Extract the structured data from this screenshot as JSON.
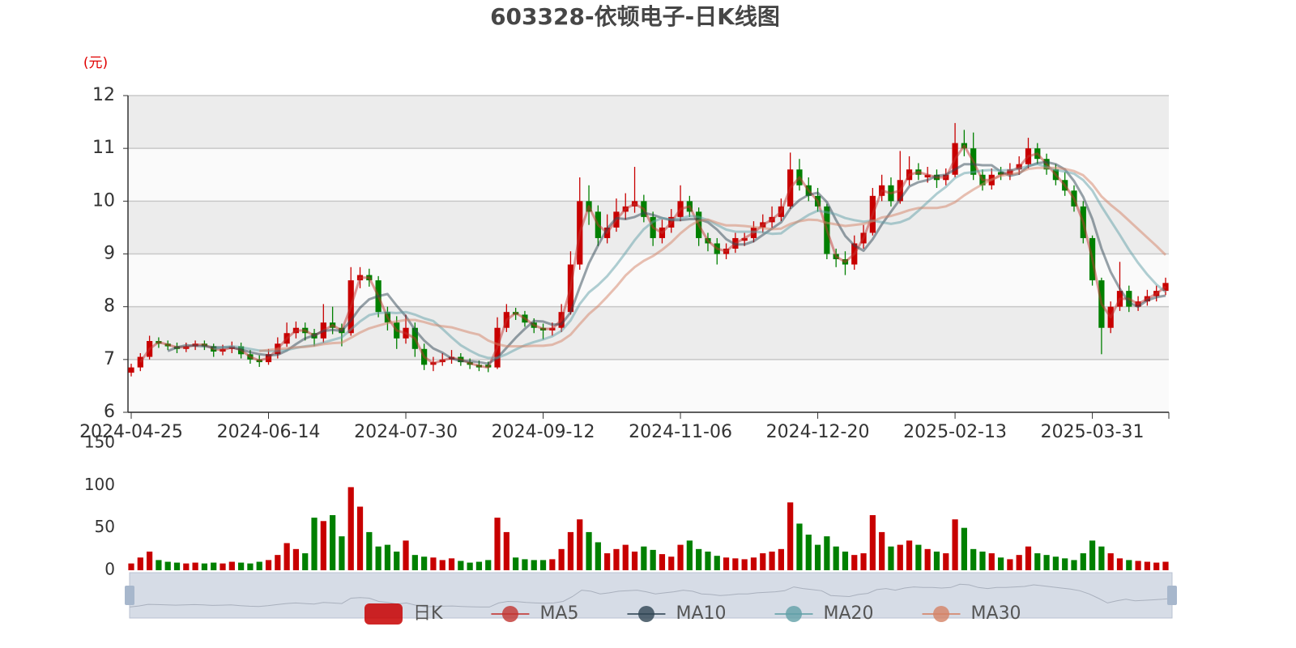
{
  "chart_data": {
    "type": "candlestick",
    "title": "603328-依顿电子-日K线图",
    "unit_label": "(元)",
    "categories": [
      "2024-04-25",
      null,
      null,
      null,
      null,
      null,
      null,
      null,
      null,
      null,
      null,
      null,
      null,
      null,
      null,
      "2024-06-14",
      null,
      null,
      null,
      null,
      null,
      null,
      null,
      null,
      null,
      null,
      null,
      null,
      null,
      null,
      "2024-07-30",
      null,
      null,
      null,
      null,
      null,
      null,
      null,
      null,
      null,
      null,
      null,
      null,
      null,
      null,
      "2024-09-12",
      null,
      null,
      null,
      null,
      null,
      null,
      null,
      null,
      null,
      null,
      null,
      null,
      null,
      null,
      "2024-11-06",
      null,
      null,
      null,
      null,
      null,
      null,
      null,
      null,
      null,
      null,
      null,
      null,
      null,
      null,
      "2024-12-20",
      null,
      null,
      null,
      null,
      null,
      null,
      null,
      null,
      null,
      null,
      null,
      null,
      null,
      null,
      "2025-02-13",
      null,
      null,
      null,
      null,
      null,
      null,
      null,
      null,
      null,
      null,
      null,
      null,
      null,
      null,
      "2025-03-31",
      null,
      null,
      null,
      null,
      null,
      null,
      null,
      null
    ],
    "ylim": [
      6,
      12
    ],
    "yticks": [
      6,
      7,
      8,
      9,
      10,
      11,
      12
    ],
    "grid": true,
    "series": [
      {
        "name": "日K",
        "type": "candlestick",
        "up_color": "#c80000",
        "down_color": "#008000",
        "open": [
          6.75,
          6.85,
          7.05,
          7.35,
          7.3,
          7.25,
          7.2,
          7.25,
          7.3,
          7.25,
          7.15,
          7.2,
          7.25,
          7.1,
          7.0,
          6.95,
          7.1,
          7.3,
          7.5,
          7.6,
          7.5,
          7.4,
          7.7,
          7.6,
          7.5,
          8.5,
          8.6,
          8.5,
          7.9,
          7.7,
          7.4,
          7.6,
          7.2,
          6.9,
          6.95,
          7.0,
          7.05,
          6.95,
          6.9,
          6.9,
          6.85,
          7.6,
          7.9,
          7.85,
          7.7,
          7.6,
          7.55,
          7.6,
          7.9,
          8.8,
          10.0,
          9.8,
          9.3,
          9.5,
          9.8,
          9.9,
          10.0,
          9.7,
          9.3,
          9.5,
          9.7,
          10.0,
          9.8,
          9.3,
          9.2,
          9.0,
          9.1,
          9.25,
          9.3,
          9.5,
          9.6,
          9.7,
          9.9,
          10.6,
          10.3,
          10.1,
          9.9,
          9.0,
          8.9,
          8.8,
          9.2,
          9.4,
          10.1,
          10.3,
          10.0,
          10.4,
          10.6,
          10.45,
          10.5,
          10.4,
          10.5,
          11.1,
          11.0,
          10.5,
          10.3,
          10.55,
          10.5,
          10.6,
          10.7,
          11.0,
          10.8,
          10.6,
          10.4,
          10.2,
          9.9,
          9.3,
          8.5,
          7.6,
          8.0,
          8.3,
          8.0,
          8.1,
          8.2,
          8.3
        ],
        "close": [
          6.85,
          7.05,
          7.35,
          7.3,
          7.25,
          7.2,
          7.25,
          7.3,
          7.25,
          7.15,
          7.2,
          7.25,
          7.1,
          7.0,
          6.95,
          7.1,
          7.3,
          7.5,
          7.6,
          7.5,
          7.4,
          7.7,
          7.6,
          7.5,
          8.5,
          8.6,
          8.5,
          7.9,
          7.7,
          7.4,
          7.6,
          7.2,
          6.9,
          6.95,
          7.0,
          7.05,
          6.95,
          6.9,
          6.85,
          6.85,
          7.6,
          7.9,
          7.85,
          7.7,
          7.6,
          7.55,
          7.6,
          7.9,
          8.8,
          10.0,
          9.8,
          9.3,
          9.5,
          9.8,
          9.9,
          10.0,
          9.7,
          9.3,
          9.5,
          9.7,
          10.0,
          9.8,
          9.3,
          9.2,
          9.0,
          9.1,
          9.3,
          9.3,
          9.5,
          9.6,
          9.7,
          9.9,
          10.6,
          10.3,
          10.1,
          9.9,
          9.0,
          8.9,
          8.8,
          9.2,
          9.4,
          10.1,
          10.3,
          10.0,
          10.4,
          10.6,
          10.5,
          10.5,
          10.4,
          10.5,
          11.1,
          11.0,
          10.5,
          10.3,
          10.5,
          10.5,
          10.6,
          10.7,
          11.0,
          10.8,
          10.6,
          10.4,
          10.2,
          9.9,
          9.3,
          8.5,
          7.6,
          8.0,
          8.3,
          8.0,
          8.1,
          8.2,
          8.3,
          8.45
        ],
        "low": [
          6.68,
          6.78,
          7.0,
          7.22,
          7.18,
          7.12,
          7.14,
          7.18,
          7.18,
          7.05,
          7.08,
          7.12,
          7.02,
          6.92,
          6.86,
          6.9,
          7.02,
          7.24,
          7.4,
          7.36,
          7.25,
          7.32,
          7.48,
          7.25,
          7.45,
          8.35,
          8.38,
          7.8,
          7.55,
          7.2,
          7.3,
          7.05,
          6.8,
          6.78,
          6.88,
          6.92,
          6.88,
          6.82,
          6.78,
          6.76,
          6.82,
          7.52,
          7.75,
          7.62,
          7.5,
          7.38,
          7.45,
          7.52,
          7.85,
          8.7,
          9.55,
          9.15,
          9.2,
          9.42,
          9.65,
          9.78,
          9.6,
          9.15,
          9.2,
          9.4,
          9.62,
          9.7,
          9.15,
          9.05,
          8.8,
          8.9,
          9.02,
          9.15,
          9.22,
          9.4,
          9.5,
          9.62,
          9.85,
          10.2,
          10.0,
          9.8,
          8.9,
          8.75,
          8.6,
          8.7,
          9.1,
          9.35,
          10.0,
          9.9,
          9.95,
          10.3,
          10.4,
          10.35,
          10.25,
          10.3,
          10.45,
          10.85,
          10.4,
          10.2,
          10.22,
          10.4,
          10.4,
          10.5,
          10.62,
          10.7,
          10.5,
          10.3,
          10.1,
          9.8,
          9.2,
          8.4,
          7.1,
          7.5,
          7.92,
          7.9,
          7.92,
          8.02,
          8.1,
          8.22
        ],
        "high": [
          6.92,
          7.12,
          7.45,
          7.42,
          7.36,
          7.32,
          7.32,
          7.36,
          7.36,
          7.3,
          7.28,
          7.34,
          7.32,
          7.18,
          7.08,
          7.2,
          7.42,
          7.7,
          7.72,
          7.7,
          7.58,
          8.05,
          8.0,
          7.68,
          8.75,
          8.75,
          8.72,
          8.58,
          8.0,
          7.82,
          7.85,
          7.7,
          7.3,
          7.05,
          7.12,
          7.18,
          7.12,
          7.02,
          6.98,
          6.96,
          7.8,
          8.05,
          7.98,
          7.92,
          7.78,
          7.68,
          7.7,
          8.05,
          9.05,
          10.45,
          10.3,
          9.92,
          9.75,
          10.05,
          10.15,
          10.65,
          10.12,
          9.8,
          9.65,
          9.85,
          10.3,
          10.1,
          9.88,
          9.4,
          9.3,
          9.2,
          9.4,
          9.4,
          9.62,
          9.75,
          9.9,
          10.05,
          10.92,
          10.8,
          10.45,
          10.25,
          9.95,
          9.1,
          9.05,
          9.35,
          9.55,
          10.25,
          10.5,
          10.45,
          10.95,
          10.85,
          10.72,
          10.65,
          10.6,
          10.62,
          11.48,
          11.35,
          11.3,
          10.6,
          10.62,
          10.65,
          10.72,
          10.85,
          11.2,
          11.1,
          10.9,
          10.7,
          10.55,
          10.3,
          10.0,
          9.35,
          8.55,
          8.1,
          8.85,
          8.4,
          8.2,
          8.32,
          8.4,
          8.55
        ]
      },
      {
        "name": "MA5",
        "type": "line",
        "color": "#c23531",
        "values": [
          null,
          6.95,
          7.2,
          7.33,
          7.28,
          7.23,
          7.23,
          7.28,
          7.28,
          7.2,
          7.18,
          7.23,
          7.18,
          7.05,
          6.98,
          7.03,
          7.2,
          7.4,
          7.55,
          7.55,
          7.45,
          7.55,
          7.65,
          7.55,
          8.0,
          8.55,
          8.55,
          8.2,
          7.8,
          7.55,
          7.5,
          7.4,
          7.05,
          6.93,
          6.98,
          7.03,
          7.0,
          6.93,
          6.88,
          6.85,
          7.23,
          7.75,
          7.88,
          7.78,
          7.65,
          7.58,
          7.58,
          7.75,
          8.35,
          9.4,
          9.9,
          9.55,
          9.4,
          9.65,
          9.85,
          9.95,
          9.85,
          9.5,
          9.4,
          9.6,
          9.85,
          9.9,
          9.55,
          9.25,
          9.1,
          9.05,
          9.2,
          9.3,
          9.4,
          9.55,
          9.65,
          9.8,
          10.25,
          10.45,
          10.2,
          10.0,
          9.45,
          8.95,
          8.85,
          9.0,
          9.3,
          9.75,
          10.2,
          10.15,
          10.2,
          10.5,
          10.55,
          10.5,
          10.45,
          10.45,
          10.8,
          11.05,
          10.75,
          10.4,
          10.4,
          10.5,
          10.55,
          10.65,
          10.85,
          10.9,
          10.7,
          10.5,
          10.3,
          10.05,
          9.6,
          8.9,
          8.05,
          7.8,
          8.15,
          8.15,
          8.05,
          8.15,
          8.25,
          8.38
        ]
      },
      {
        "name": "MA10",
        "type": "line",
        "color": "#2f4554",
        "values": [
          null,
          null,
          null,
          null,
          7.16,
          7.23,
          7.27,
          7.26,
          7.25,
          7.23,
          7.23,
          7.23,
          7.19,
          7.14,
          7.1,
          7.08,
          7.09,
          7.17,
          7.29,
          7.4,
          7.46,
          7.54,
          7.56,
          7.54,
          7.74,
          7.98,
          8.14,
          8.2,
          8.24,
          8.02,
          7.82,
          7.56,
          7.36,
          7.21,
          7.13,
          7.02,
          6.97,
          6.97,
          6.95,
          6.92,
          7.03,
          7.22,
          7.41,
          7.58,
          7.73,
          7.72,
          7.66,
          7.67,
          7.89,
          8.37,
          8.82,
          9.16,
          9.48,
          9.68,
          9.66,
          9.7,
          9.78,
          9.74,
          9.68,
          9.64,
          9.64,
          9.66,
          9.66,
          9.6,
          9.46,
          9.28,
          9.18,
          9.18,
          9.24,
          9.36,
          9.48,
          9.6,
          9.86,
          10.02,
          10.12,
          10.16,
          9.98,
          9.64,
          9.34,
          9.16,
          9.06,
          9.28,
          9.56,
          9.8,
          10.04,
          10.28,
          10.36,
          10.4,
          10.48,
          10.5,
          10.6,
          10.7,
          10.7,
          10.68,
          10.68,
          10.56,
          10.48,
          10.52,
          10.66,
          10.72,
          10.74,
          10.7,
          10.6,
          10.38,
          10.08,
          9.66,
          9.1,
          8.66,
          8.34,
          8.08,
          8.0,
          8.12,
          8.18,
          8.21
        ]
      },
      {
        "name": "MA20",
        "type": "line",
        "color": "#61a0a8",
        "values": [
          null,
          null,
          null,
          null,
          null,
          null,
          null,
          null,
          null,
          7.2,
          7.23,
          7.25,
          7.23,
          7.2,
          7.17,
          7.16,
          7.16,
          7.18,
          7.22,
          7.25,
          7.27,
          7.32,
          7.37,
          7.42,
          7.57,
          7.72,
          7.84,
          7.88,
          7.89,
          7.88,
          7.9,
          7.85,
          7.78,
          7.73,
          7.58,
          7.42,
          7.27,
          7.17,
          7.08,
          7.03,
          7.03,
          7.1,
          7.19,
          7.27,
          7.33,
          7.38,
          7.44,
          7.54,
          7.74,
          8.05,
          8.27,
          8.41,
          8.58,
          8.79,
          9.02,
          9.26,
          9.47,
          9.61,
          9.68,
          9.65,
          9.67,
          9.72,
          9.7,
          9.64,
          9.55,
          9.46,
          9.42,
          9.42,
          9.42,
          9.41,
          9.38,
          9.39,
          9.52,
          9.63,
          9.74,
          9.82,
          9.79,
          9.75,
          9.68,
          9.64,
          9.61,
          9.63,
          9.6,
          9.57,
          9.6,
          9.67,
          9.82,
          9.98,
          10.14,
          10.27,
          10.44,
          10.53,
          10.55,
          10.58,
          10.59,
          10.58,
          10.59,
          10.61,
          10.67,
          10.7,
          10.65,
          10.59,
          10.56,
          10.52,
          10.4,
          10.2,
          9.9,
          9.63,
          9.36,
          9.08,
          8.83,
          8.61,
          8.42,
          8.28
        ]
      },
      {
        "name": "MA30",
        "type": "line",
        "color": "#d48265",
        "values": [
          null,
          null,
          null,
          null,
          null,
          null,
          null,
          null,
          null,
          null,
          null,
          null,
          null,
          null,
          7.16,
          7.18,
          7.2,
          7.21,
          7.23,
          7.24,
          7.26,
          7.29,
          7.31,
          7.32,
          7.41,
          7.51,
          7.59,
          7.64,
          7.69,
          7.72,
          7.75,
          7.75,
          7.71,
          7.66,
          7.63,
          7.61,
          7.56,
          7.51,
          7.47,
          7.36,
          7.29,
          7.25,
          7.25,
          7.25,
          7.26,
          7.26,
          7.28,
          7.35,
          7.47,
          7.67,
          7.86,
          8.01,
          8.19,
          8.38,
          8.59,
          8.75,
          8.87,
          8.96,
          9.08,
          9.22,
          9.39,
          9.53,
          9.63,
          9.65,
          9.59,
          9.54,
          9.54,
          9.53,
          9.51,
          9.49,
          9.47,
          9.48,
          9.57,
          9.62,
          9.65,
          9.64,
          9.59,
          9.56,
          9.53,
          9.55,
          9.57,
          9.62,
          9.69,
          9.72,
          9.77,
          9.83,
          9.87,
          9.87,
          9.87,
          9.9,
          9.98,
          10.11,
          10.22,
          10.32,
          10.41,
          10.48,
          10.51,
          10.54,
          10.61,
          10.63,
          10.63,
          10.63,
          10.61,
          10.57,
          10.49,
          10.32,
          10.09,
          9.93,
          9.79,
          9.63,
          9.47,
          9.31,
          9.15,
          8.98
        ]
      }
    ],
    "volume": {
      "ylim": [
        0,
        150
      ],
      "yticks": [
        0,
        50,
        100,
        150
      ],
      "values": [
        8,
        15,
        22,
        12,
        10,
        9,
        8,
        9,
        8,
        9,
        8,
        10,
        9,
        8,
        10,
        12,
        18,
        32,
        25,
        20,
        62,
        58,
        65,
        40,
        98,
        75,
        45,
        28,
        30,
        22,
        35,
        18,
        16,
        15,
        12,
        14,
        11,
        9,
        10,
        12,
        62,
        45,
        15,
        13,
        12,
        12,
        13,
        25,
        45,
        60,
        45,
        33,
        20,
        25,
        30,
        22,
        28,
        24,
        19,
        16,
        30,
        35,
        25,
        22,
        17,
        15,
        14,
        13,
        15,
        20,
        22,
        25,
        80,
        55,
        42,
        30,
        40,
        28,
        22,
        18,
        20,
        65,
        45,
        28,
        30,
        35,
        30,
        25,
        22,
        20,
        60,
        50,
        25,
        22,
        20,
        15,
        13,
        18,
        28,
        20,
        18,
        16,
        14,
        12,
        20,
        35,
        28,
        20,
        14,
        12,
        11,
        10,
        9,
        10
      ]
    }
  }
}
